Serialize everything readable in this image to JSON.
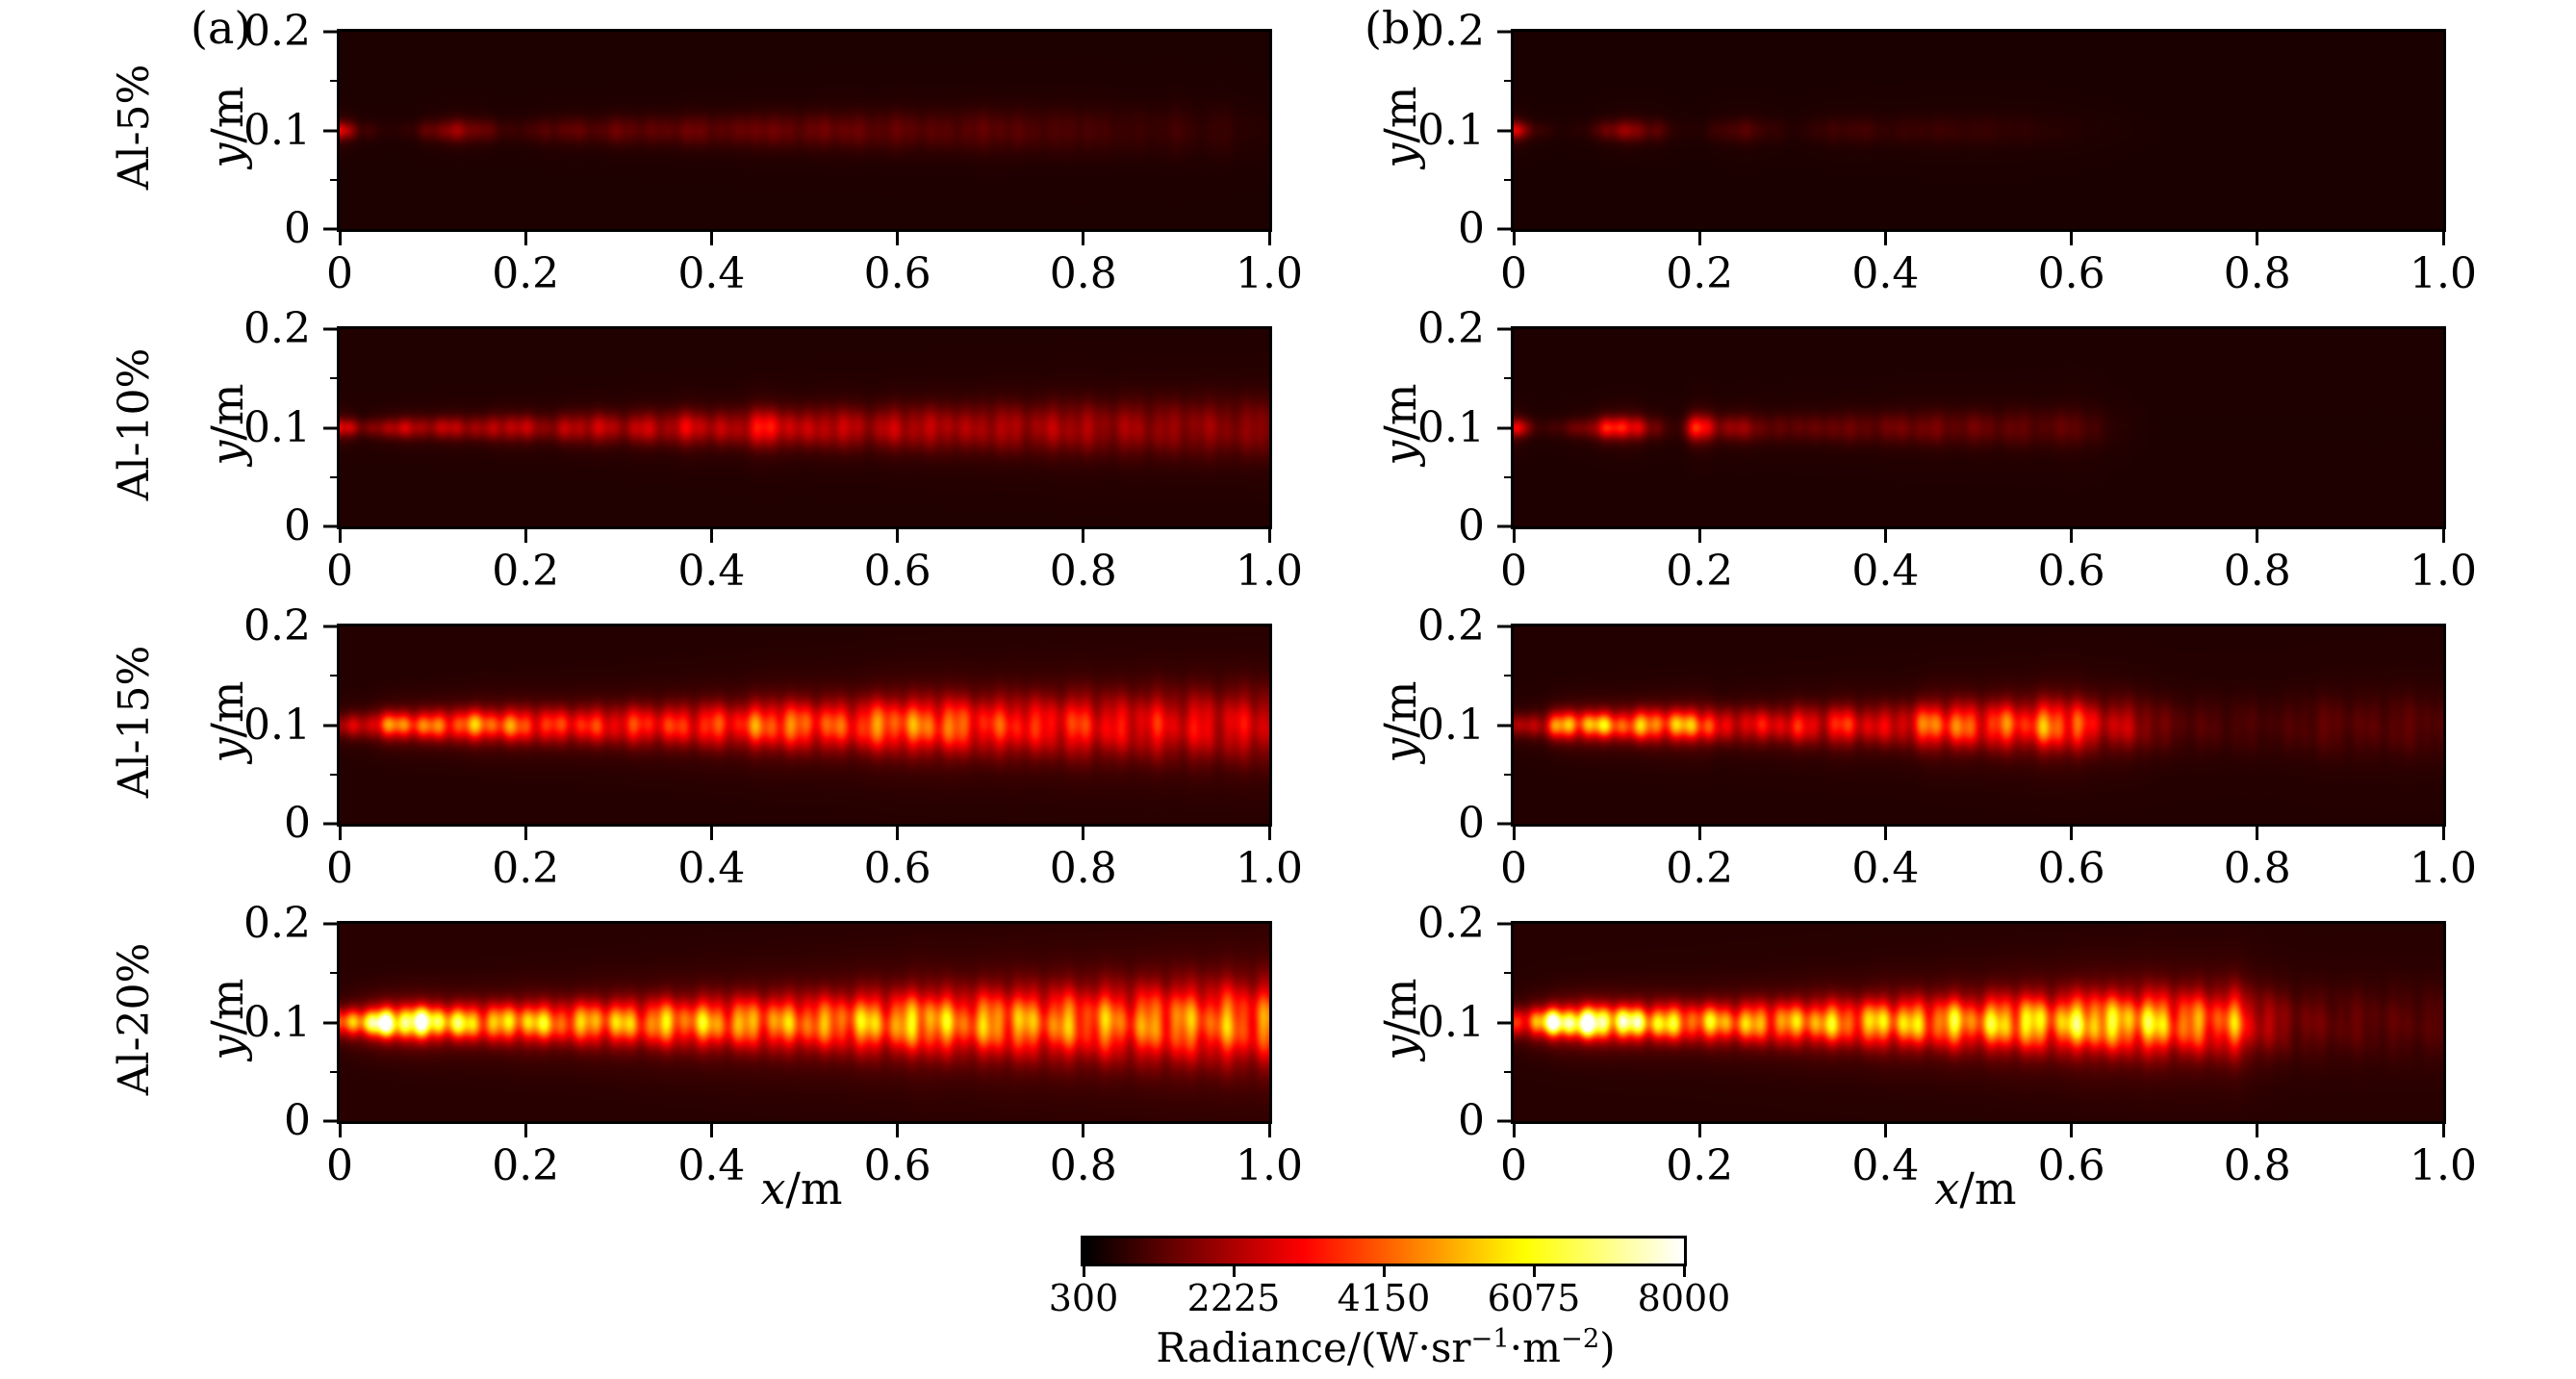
{
  "figure": {
    "columns": [
      {
        "id": "a",
        "label": "(a)"
      },
      {
        "id": "b",
        "label": "(b)"
      }
    ],
    "row_labels": [
      "Al-5%",
      "Al-10%",
      "Al-15%",
      "Al-20%"
    ],
    "x_axis": {
      "var": "x",
      "unit": "/m",
      "range": [
        0,
        1.0
      ],
      "tick_labels": [
        "0",
        "0.2",
        "0.4",
        "0.6",
        "0.8",
        "1.0"
      ]
    },
    "y_axis": {
      "var": "y",
      "unit": "/m",
      "range": [
        0,
        0.2
      ],
      "ticks": [
        {
          "label": "0.2",
          "f": 0
        },
        {
          "label": "0.1",
          "f": 0.5
        },
        {
          "label": "0",
          "f": 1
        }
      ],
      "minor_f": [
        0.25,
        0.75
      ]
    },
    "colorbar": {
      "min": 300,
      "max": 8000,
      "colormap": "hot",
      "tick_labels": [
        "300",
        "2225",
        "4150",
        "6075",
        "8000"
      ],
      "label_pre": "Radiance/(W·sr",
      "label_sup1": "−1",
      "label_mid": "·m",
      "label_sup2": "−2",
      "label_close": ")"
    }
  },
  "chart_data": {
    "type": "heatmap",
    "title": "Radiance fields of Al-loaded plumes, cases (a) and (b)",
    "x_range_m": [
      0,
      1.0
    ],
    "y_range_m": [
      0,
      0.2
    ],
    "value_unit": "W·sr−1·m−2",
    "value_range": [
      300,
      8000
    ],
    "x_step": 0.025,
    "plume_center_y_m": 0.1,
    "panels": [
      {
        "id": "a5",
        "column": "a",
        "row_label": "Al-5%",
        "base": 620,
        "sigma": [
          0.006,
          0.018
        ],
        "texture": 0.25,
        "seed": 3,
        "centerline": [
          2800,
          1000,
          760,
          820,
          1500,
          1950,
          1550,
          950,
          1000,
          1250,
          1320,
          1200,
          1420,
          1300,
          1260,
          1460,
          1340,
          1300,
          1520,
          1400,
          1360,
          1460,
          1400,
          1300,
          1360,
          1260,
          1200,
          1260,
          1320,
          1200,
          1150,
          1100,
          1100,
          1000,
          950,
          900,
          1000,
          850,
          900,
          760,
          700
        ]
      },
      {
        "id": "b5",
        "column": "b",
        "row_label": "Al-5%",
        "base": 600,
        "sigma": [
          0.006,
          0.016
        ],
        "texture": 0.22,
        "seed": 4,
        "centerline": [
          2800,
          900,
          700,
          760,
          1500,
          1900,
          1300,
          760,
          700,
          1060,
          1200,
          900,
          700,
          860,
          1000,
          1000,
          860,
          900,
          950,
          900,
          900,
          850,
          800,
          750,
          700,
          650,
          630,
          610,
          600,
          600,
          600,
          600,
          600,
          600,
          600,
          600,
          600,
          600,
          600,
          600,
          600
        ]
      },
      {
        "id": "a10",
        "column": "a",
        "row_label": "Al-10%",
        "base": 660,
        "sigma": [
          0.006,
          0.02
        ],
        "texture": 0.33,
        "seed": 5,
        "centerline": [
          3400,
          1400,
          2200,
          2400,
          2100,
          2300,
          1900,
          2500,
          2200,
          1800,
          2300,
          2500,
          2000,
          2400,
          2200,
          2700,
          2300,
          2100,
          3300,
          2800,
          2200,
          2500,
          2300,
          2000,
          2400,
          2200,
          2300,
          2000,
          2200,
          2100,
          2000,
          2200,
          2100,
          1900,
          2000,
          1900,
          1850,
          1900,
          1800,
          1750,
          1800
        ]
      },
      {
        "id": "b10",
        "column": "b",
        "row_label": "Al-10%",
        "base": 640,
        "sigma": [
          0.006,
          0.018
        ],
        "texture": 0.3,
        "seed": 6,
        "centerline": [
          3200,
          950,
          1100,
          1600,
          3300,
          3400,
          1400,
          900,
          3600,
          1700,
          1950,
          1250,
          1400,
          1300,
          1500,
          1350,
          1450,
          1500,
          1550,
          1400,
          1450,
          1300,
          1350,
          1200,
          1400,
          1000,
          760,
          660,
          620,
          620,
          620,
          620,
          620,
          620,
          620,
          620,
          620,
          620,
          620,
          620,
          620
        ]
      },
      {
        "id": "a15",
        "column": "a",
        "row_label": "Al-15%",
        "base": 700,
        "sigma": [
          0.008,
          0.024
        ],
        "texture": 0.4,
        "seed": 7,
        "centerline": [
          2200,
          2600,
          4200,
          4400,
          4100,
          4300,
          4600,
          4200,
          4000,
          3400,
          3500,
          3300,
          3200,
          3500,
          3300,
          3400,
          3600,
          3400,
          4100,
          4300,
          4000,
          3800,
          3600,
          4200,
          4400,
          4200,
          4300,
          3800,
          3400,
          3600,
          3200,
          3300,
          3400,
          3000,
          2900,
          3100,
          2800,
          2900,
          2700,
          2800,
          2700
        ]
      },
      {
        "id": "b15",
        "column": "b",
        "row_label": "Al-15%",
        "base": 680,
        "sigma": [
          0.008,
          0.022
        ],
        "texture": 0.45,
        "seed": 8,
        "centerline": [
          1800,
          2400,
          4800,
          5200,
          4700,
          4500,
          4900,
          4600,
          4800,
          2600,
          3000,
          2700,
          3200,
          2800,
          3300,
          2900,
          2600,
          3000,
          4300,
          4100,
          3600,
          3900,
          3700,
          4400,
          4200,
          2800,
          2400,
          2000,
          1400,
          1200,
          1150,
          1100,
          1100,
          1050,
          1200,
          1300,
          1250,
          1200,
          1300,
          1250,
          1200
        ]
      },
      {
        "id": "a20",
        "column": "a",
        "row_label": "Al-20%",
        "base": 740,
        "sigma": [
          0.009,
          0.027
        ],
        "texture": 0.45,
        "seed": 9,
        "centerline": [
          3800,
          6200,
          7800,
          8000,
          7000,
          5600,
          5400,
          5000,
          5600,
          4800,
          4600,
          5000,
          4800,
          4600,
          5000,
          4700,
          4900,
          4600,
          4800,
          4500,
          4700,
          4400,
          4800,
          5000,
          4600,
          5600,
          4800,
          4500,
          4700,
          4900,
          4400,
          4600,
          4300,
          4500,
          4200,
          4400,
          4600,
          4300,
          4500,
          4200,
          4300
        ]
      },
      {
        "id": "b20",
        "column": "b",
        "row_label": "Al-20%",
        "base": 720,
        "sigma": [
          0.009,
          0.025
        ],
        "texture": 0.48,
        "seed": 10,
        "centerline": [
          3200,
          5400,
          7800,
          8000,
          7600,
          6400,
          6000,
          5200,
          4800,
          5000,
          4700,
          4900,
          4600,
          5200,
          4800,
          4600,
          5400,
          5000,
          4800,
          5200,
          4700,
          5400,
          5600,
          5000,
          5400,
          6000,
          5200,
          5600,
          5000,
          4400,
          4200,
          4400,
          2600,
          1800,
          1500,
          1400,
          1350,
          1300,
          1250,
          1250,
          1200
        ]
      }
    ]
  }
}
